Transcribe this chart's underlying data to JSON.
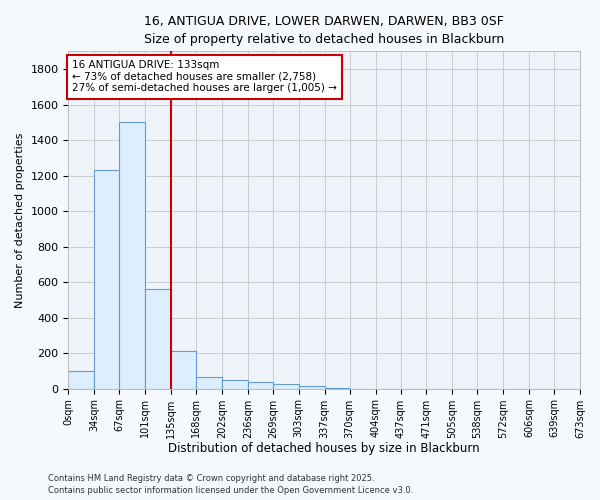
{
  "title_line1": "16, ANTIGUA DRIVE, LOWER DARWEN, DARWEN, BB3 0SF",
  "title_line2": "Size of property relative to detached houses in Blackburn",
  "xlabel": "Distribution of detached houses by size in Blackburn",
  "ylabel": "Number of detached properties",
  "bin_edges": [
    0,
    34,
    67,
    101,
    135,
    168,
    202,
    236,
    269,
    303,
    337,
    370,
    404,
    437,
    471,
    505,
    538,
    572,
    606,
    639,
    673
  ],
  "bin_counts": [
    97,
    1230,
    1500,
    560,
    210,
    68,
    47,
    37,
    28,
    15,
    5,
    0,
    0,
    0,
    0,
    0,
    0,
    0,
    0,
    0
  ],
  "bar_color": "#ddeeff",
  "bar_edgecolor": "#6699cc",
  "vline_x": 135,
  "vline_color": "#cc0000",
  "annotation_text": "16 ANTIGUA DRIVE: 133sqm\n← 73% of detached houses are smaller (2,758)\n27% of semi-detached houses are larger (1,005) →",
  "annotation_box_facecolor": "#ffffff",
  "annotation_box_edgecolor": "#cc0000",
  "ylim": [
    0,
    1900
  ],
  "yticks": [
    0,
    200,
    400,
    600,
    800,
    1000,
    1200,
    1400,
    1600,
    1800
  ],
  "tick_labels": [
    "0sqm",
    "34sqm",
    "67sqm",
    "101sqm",
    "135sqm",
    "168sqm",
    "202sqm",
    "236sqm",
    "269sqm",
    "303sqm",
    "337sqm",
    "370sqm",
    "404sqm",
    "437sqm",
    "471sqm",
    "505sqm",
    "538sqm",
    "572sqm",
    "606sqm",
    "639sqm",
    "673sqm"
  ],
  "plot_bg_color": "#eef3fa",
  "fig_bg_color": "#f5f8fc",
  "grid_color": "#cccccc",
  "footnote1": "Contains HM Land Registry data © Crown copyright and database right 2025.",
  "footnote2": "Contains public sector information licensed under the Open Government Licence v3.0."
}
